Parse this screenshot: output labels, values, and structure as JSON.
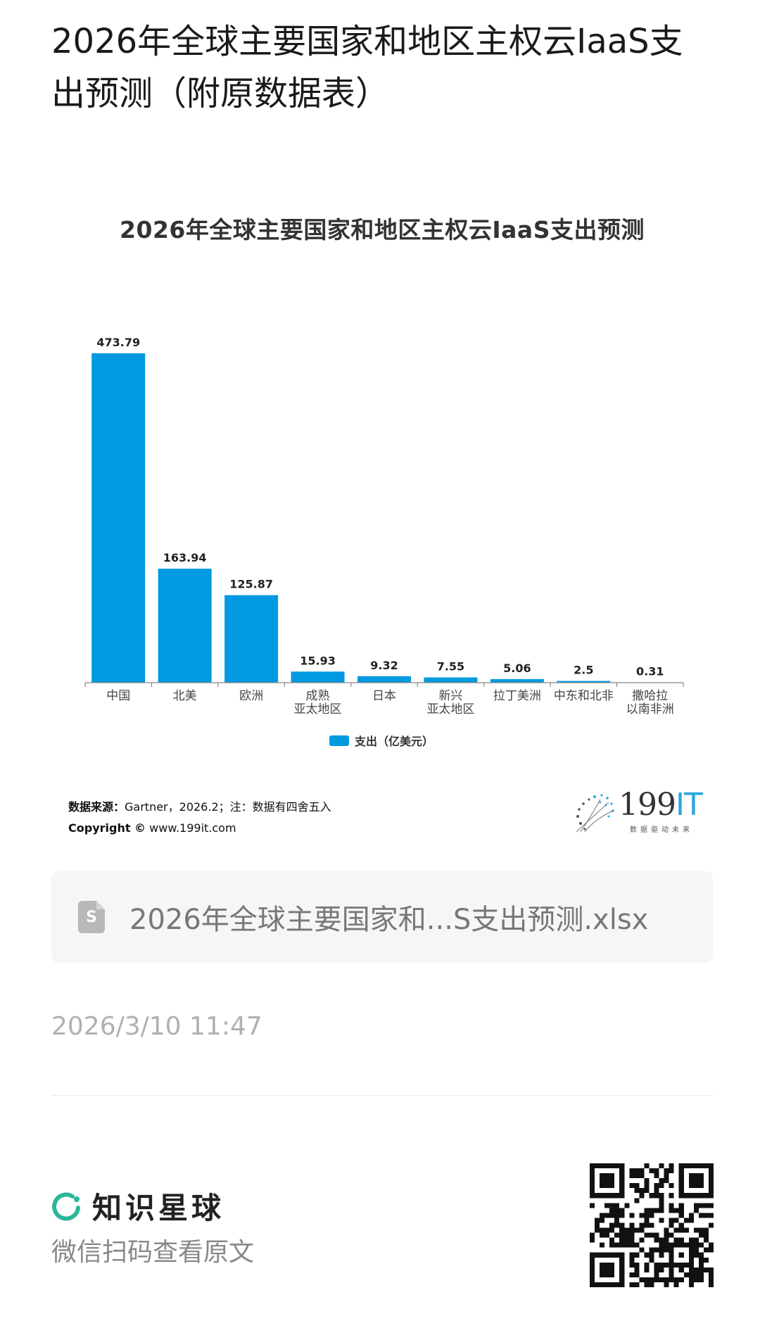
{
  "page": {
    "title": "2026年全球主要国家和地区主权云IaaS支出预测（附原数据表）"
  },
  "chart_data": {
    "type": "bar",
    "title": "2026年全球主要国家和地区主权云IaaS支出预测",
    "categories": [
      "中国",
      "北美",
      "欧洲",
      "成熟亚太地区",
      "日本",
      "新兴亚太地区",
      "拉丁美洲",
      "中东和北非",
      "撒哈拉以南非洲"
    ],
    "category_lines": [
      [
        "中国"
      ],
      [
        "北美"
      ],
      [
        "欧洲"
      ],
      [
        "成熟",
        "亚太地区"
      ],
      [
        "日本"
      ],
      [
        "新兴",
        "亚太地区"
      ],
      [
        "拉丁美洲"
      ],
      [
        "中东和北非"
      ],
      [
        "撒哈拉",
        "以南非洲"
      ]
    ],
    "series": [
      {
        "name": "支出（亿美元）",
        "color": "#0199e0",
        "values": [
          473.79,
          163.94,
          125.87,
          15.93,
          9.32,
          7.55,
          5.06,
          2.5,
          0.31
        ],
        "labels": [
          "473.79",
          "163.94",
          "125.87",
          "15.93",
          "9.32",
          "7.55",
          "5.06",
          "2.5",
          "0.31"
        ]
      }
    ],
    "xlabel": "",
    "ylabel": "",
    "ylim": [
      0,
      473.79
    ],
    "grid": false,
    "legend_position": "bottom"
  },
  "chart_footer": {
    "source_label": "数据来源：",
    "source_text": "Gartner，2026.2；注：数据有四舍五入",
    "copyright_label": "Copyright ©",
    "copyright_text": "www.199it.com",
    "logo_main": "199",
    "logo_accent": "IT",
    "logo_sub": "数据驱动未来"
  },
  "attachment": {
    "icon": "spreadsheet-file-icon",
    "icon_glyph": "S",
    "file_name": "2026年全球主要国家和...S支出预测.xlsx"
  },
  "post": {
    "timestamp": "2026/3/10 11:47"
  },
  "footer": {
    "brand_name": "知识星球",
    "brand_color": "#2db79a",
    "scan_prompt": "微信扫码查看原文"
  }
}
